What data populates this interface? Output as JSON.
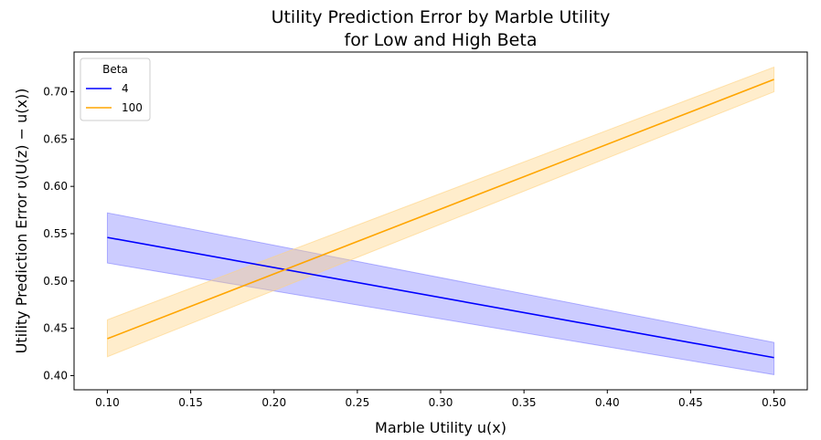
{
  "chart_data": {
    "type": "line",
    "title_lines": [
      "Utility Prediction Error by Marble Utility",
      "for Low and High Beta"
    ],
    "xlabel": "Marble Utility u(x)",
    "ylabel": "Utility Prediction Error υ(U(z) − u(x))",
    "xlim": [
      0.08,
      0.52
    ],
    "ylim": [
      0.385,
      0.742
    ],
    "xticks": [
      0.1,
      0.15,
      0.2,
      0.25,
      0.3,
      0.35,
      0.4,
      0.45,
      0.5
    ],
    "xtick_labels": [
      "0.10",
      "0.15",
      "0.20",
      "0.25",
      "0.30",
      "0.35",
      "0.40",
      "0.45",
      "0.50"
    ],
    "yticks": [
      0.4,
      0.45,
      0.5,
      0.55,
      0.6,
      0.65,
      0.7
    ],
    "ytick_labels": [
      "0.40",
      "0.45",
      "0.50",
      "0.55",
      "0.60",
      "0.65",
      "0.70"
    ],
    "grid": false,
    "legend": {
      "title": "Beta",
      "placement": "top-left"
    },
    "series": [
      {
        "name": "4",
        "color": "#0000ff",
        "band_color": "#7f7fff",
        "x": [
          0.1,
          0.5
        ],
        "y": [
          0.546,
          0.419
        ],
        "ci_lower": [
          0.519,
          0.401
        ],
        "ci_upper": [
          0.572,
          0.435
        ]
      },
      {
        "name": "100",
        "color": "#ffa500",
        "band_color": "#ffd27f",
        "x": [
          0.1,
          0.5
        ],
        "y": [
          0.439,
          0.713
        ],
        "ci_lower": [
          0.42,
          0.7
        ],
        "ci_upper": [
          0.459,
          0.726
        ]
      }
    ]
  }
}
